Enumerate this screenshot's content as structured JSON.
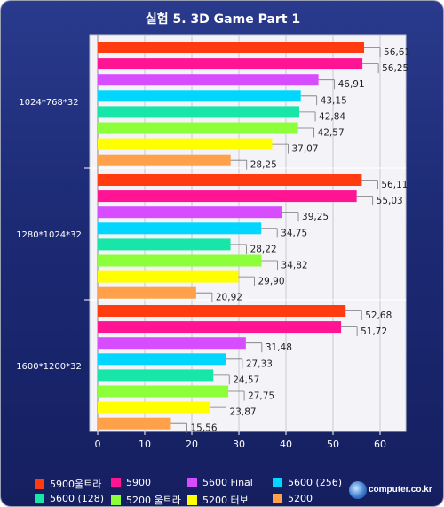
{
  "chart_data": {
    "type": "bar",
    "orientation": "horizontal",
    "title": "실험 5. 3D Game Part 1",
    "xlim": [
      0,
      70
    ],
    "x_ticks": [
      "0",
      "10",
      "20",
      "30",
      "40",
      "50",
      "60"
    ],
    "grid": true,
    "legend_position": "bottom",
    "categories": [
      "1024*768*32",
      "1280*1024*32",
      "1600*1200*32"
    ],
    "series": [
      {
        "name": "5900울트라",
        "color": "#ff3b0f",
        "values": [
          56.61,
          56.11,
          52.68
        ],
        "labels": [
          "56,61",
          "56,11",
          "52,68"
        ]
      },
      {
        "name": "5900",
        "color": "#ff1493",
        "values": [
          56.25,
          55.03,
          51.72
        ],
        "labels": [
          "56,25",
          "55,03",
          "51,72"
        ]
      },
      {
        "name": "5600 Final",
        "color": "#d84cff",
        "values": [
          46.91,
          39.25,
          31.48
        ],
        "labels": [
          "46,91",
          "39,25",
          "31,48"
        ]
      },
      {
        "name": "5600 (256)",
        "color": "#00d6ff",
        "values": [
          43.15,
          34.75,
          27.33
        ],
        "labels": [
          "43,15",
          "34,75",
          "27,33"
        ]
      },
      {
        "name": "5600 (128)",
        "color": "#17e6a8",
        "values": [
          42.84,
          28.22,
          24.57
        ],
        "labels": [
          "42,84",
          "28,22",
          "24,57"
        ]
      },
      {
        "name": "5200 울트라",
        "color": "#8cff3a",
        "values": [
          42.57,
          34.82,
          27.75
        ],
        "labels": [
          "42,57",
          "34,82",
          "27,75"
        ]
      },
      {
        "name": "5200 터보",
        "color": "#ffff00",
        "values": [
          37.07,
          29.9,
          23.87
        ],
        "labels": [
          "37,07",
          "29,90",
          "23,87"
        ]
      },
      {
        "name": "5200",
        "color": "#ffa04a",
        "values": [
          28.25,
          20.92,
          15.56
        ],
        "labels": [
          "28,25",
          "20,92",
          "15,56"
        ]
      }
    ]
  },
  "logo": {
    "text": "computer.co.kr",
    "icon": "globe-icon"
  }
}
